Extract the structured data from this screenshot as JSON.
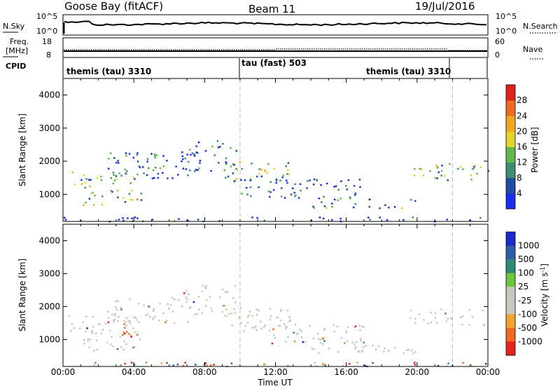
{
  "header": {
    "station": "Goose Bay (fitACF)",
    "beam": "Beam 11",
    "date": "19/Jul/2016"
  },
  "summary": {
    "nsky_label": "N.Sky",
    "nsky_ticks": [
      "10^5",
      "10^0"
    ],
    "nsearch_label": "N.Search",
    "nsearch_ticks": [
      "10^5",
      "10^0"
    ],
    "freq_label_1": "Freq.",
    "freq_label_2": "[MHz]",
    "freq_ticks": [
      "18",
      "8"
    ],
    "nave_label": "Nave",
    "nave_ticks": [
      "60",
      "0"
    ],
    "cpid_label": "CPID",
    "cpid_segments": [
      "themis (tau) 3310",
      "tau (fast) 503",
      "themis (tau) 3310"
    ]
  },
  "chart_data": [
    {
      "type": "heatmap",
      "panel": "power",
      "ylabel": "Slant Range [km]",
      "yticks": [
        "1000",
        "2000",
        "3000",
        "4000"
      ],
      "ylim": [
        180,
        4500
      ],
      "xlim": [
        0,
        24
      ],
      "colorbar_label": "Power [dB]",
      "colorbar_ticks": [
        "4",
        "8",
        "12",
        "16",
        "20",
        "24",
        "28"
      ],
      "colorbar_colors": [
        "#1b2ef0",
        "#1f4aa8",
        "#3a8f6e",
        "#62b84a",
        "#e5d52a",
        "#f0a81f",
        "#ef6b1d",
        "#e0221b"
      ],
      "regions": [
        {
          "x0": 0.1,
          "x1": 4.2,
          "y0": 1200,
          "y1": 1750,
          "level": 0.35
        },
        {
          "x0": 1.1,
          "x1": 4.4,
          "y0": 650,
          "y1": 1150,
          "level": 0.5
        },
        {
          "x0": 2.5,
          "x1": 7.2,
          "y0": 1500,
          "y1": 2300,
          "level": 0.2
        },
        {
          "x0": 6.7,
          "x1": 9.8,
          "y0": 1700,
          "y1": 2700,
          "level": 0.15
        },
        {
          "x0": 9.0,
          "x1": 12.8,
          "y0": 1400,
          "y1": 2000,
          "level": 0.45
        },
        {
          "x0": 10.0,
          "x1": 17.0,
          "y0": 900,
          "y1": 1500,
          "level": 0.12
        },
        {
          "x0": 14.0,
          "x1": 20.0,
          "y0": 600,
          "y1": 900,
          "level": 0.25
        },
        {
          "x0": 19.5,
          "x1": 24.0,
          "y0": 1450,
          "y1": 1950,
          "level": 0.4
        },
        {
          "x0": 0.0,
          "x1": 24.0,
          "y0": 200,
          "y1": 330,
          "level": 0.1
        }
      ]
    },
    {
      "type": "heatmap",
      "panel": "velocity",
      "ylabel": "Slant Range [km]",
      "yticks": [
        "1000",
        "2000",
        "3000",
        "4000"
      ],
      "ylim": [
        180,
        4500
      ],
      "xlim": [
        0,
        24
      ],
      "xlabel": "Time UT",
      "xticks": [
        "00:00",
        "04:00",
        "08:00",
        "12:00",
        "16:00",
        "20:00",
        "00:00"
      ],
      "colorbar_label": "Velocity [m s",
      "colorbar_label_sup": "-1",
      "colorbar_label_end": "]",
      "colorbar_ticks": [
        "-1000",
        "-500",
        "-100",
        "-25",
        "25",
        "100",
        "500",
        "1000"
      ],
      "colorbar_colors": [
        "#e8221e",
        "#f26a1e",
        "#f3a52b",
        "#c8c8c0",
        "#c8c8c0",
        "#6ec43e",
        "#2f8a7a",
        "#2f5ea8",
        "#1b2ad0"
      ],
      "regions": [
        {
          "x0": 0.1,
          "x1": 4.2,
          "y0": 1200,
          "y1": 1750,
          "level": 0.5
        },
        {
          "x0": 1.1,
          "x1": 4.4,
          "y0": 650,
          "y1": 1150,
          "level": 0.5
        },
        {
          "x0": 2.5,
          "x1": 7.2,
          "y0": 1500,
          "y1": 2300,
          "level": 0.5
        },
        {
          "x0": 6.7,
          "x1": 9.8,
          "y0": 1700,
          "y1": 2700,
          "level": 0.5
        },
        {
          "x0": 9.0,
          "x1": 12.8,
          "y0": 1400,
          "y1": 2000,
          "level": 0.5
        },
        {
          "x0": 10.0,
          "x1": 17.0,
          "y0": 900,
          "y1": 1500,
          "level": 0.5
        },
        {
          "x0": 14.0,
          "x1": 20.0,
          "y0": 600,
          "y1": 900,
          "level": 0.5
        },
        {
          "x0": 19.5,
          "x1": 24.0,
          "y0": 1450,
          "y1": 1950,
          "level": 0.5
        },
        {
          "x0": 3.2,
          "x1": 4.4,
          "y0": 1050,
          "y1": 1700,
          "level": 0.08
        },
        {
          "x0": 0.0,
          "x1": 24.0,
          "y0": 200,
          "y1": 330,
          "level": 0.3
        }
      ]
    }
  ]
}
